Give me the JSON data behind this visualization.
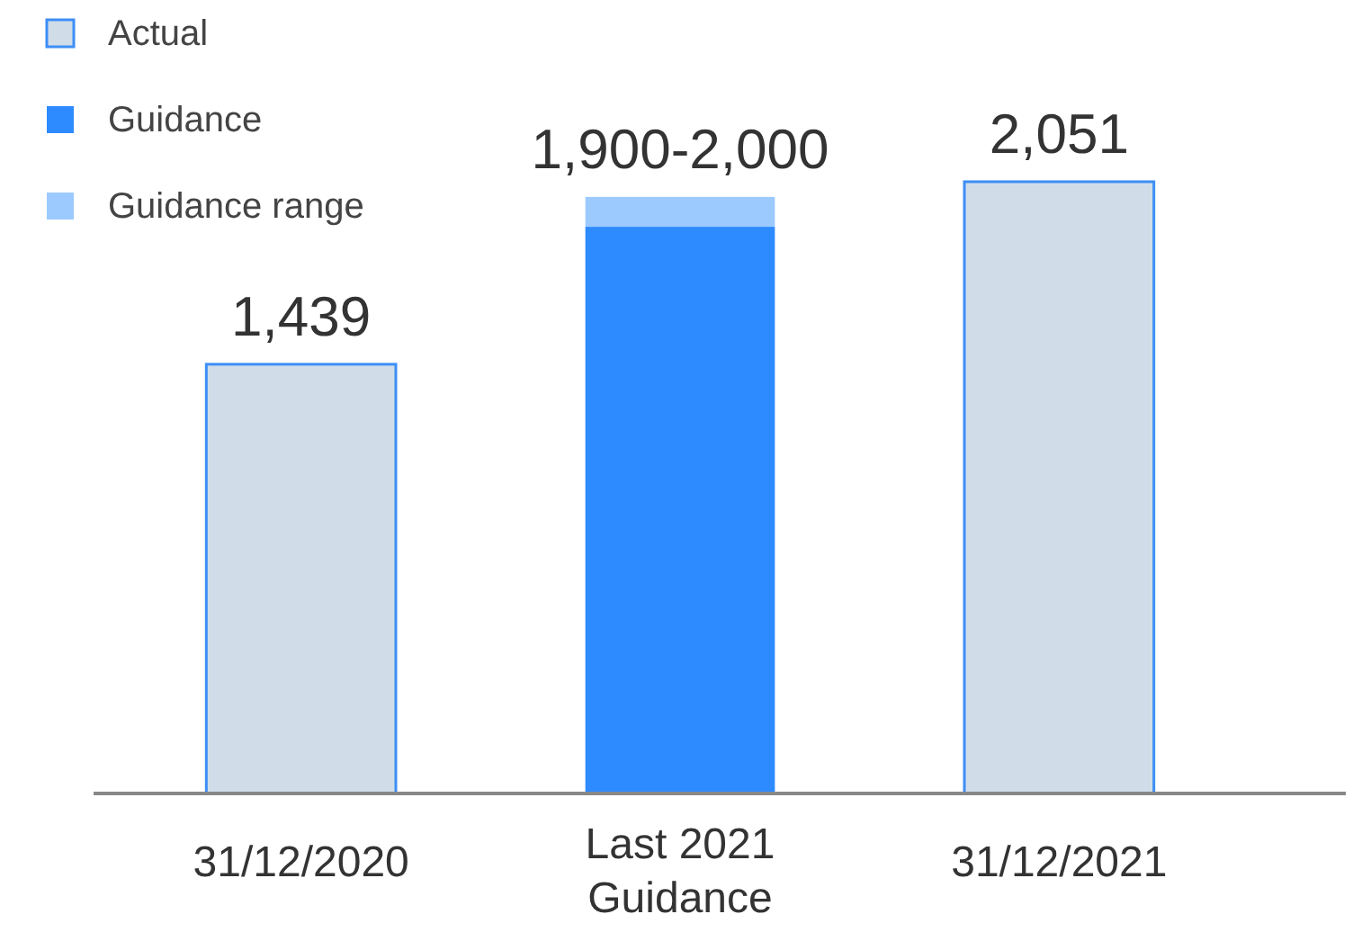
{
  "chart_data": {
    "type": "bar",
    "stacked": true,
    "legend": "top left",
    "categories": [
      "31/12/2020",
      "Last 2021 Guidance",
      "31/12/2021"
    ],
    "series": [
      {
        "name": "Actual",
        "color": "#d0dde9",
        "values": [
          1439,
          null,
          2051
        ],
        "value_labels": [
          "1,439",
          null,
          "2,051"
        ]
      },
      {
        "name": "Guidance",
        "color": "#2e8bff",
        "values": [
          null,
          1900,
          null
        ]
      },
      {
        "name": "Guidance range",
        "color": "#9ccaff",
        "values": [
          null,
          100,
          null
        ],
        "value_labels": [
          null,
          "1,900-2,000",
          null
        ]
      }
    ]
  }
}
